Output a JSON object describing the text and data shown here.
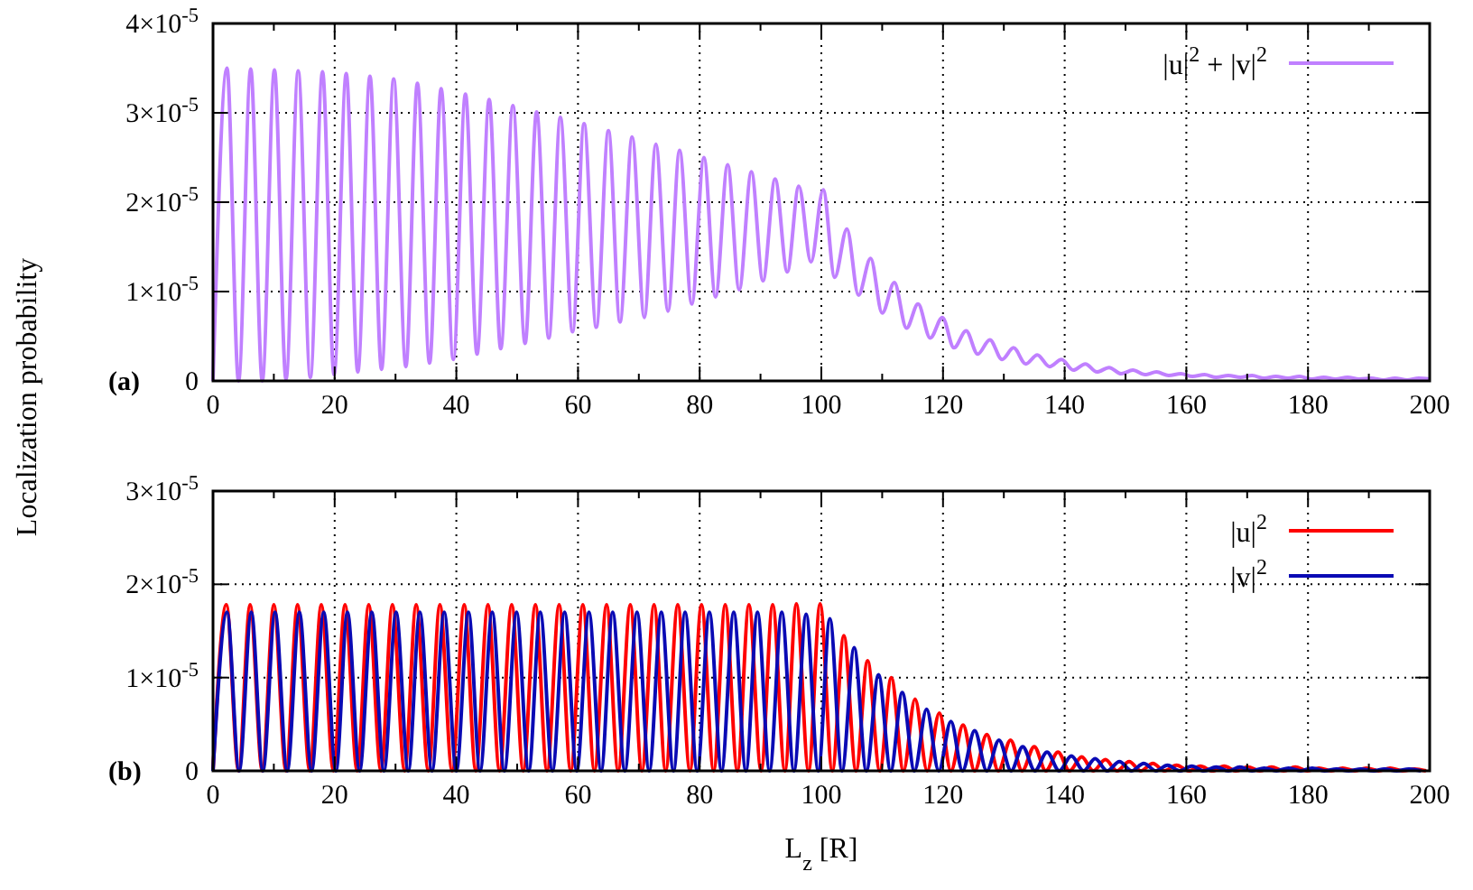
{
  "chart_data": [
    {
      "type": "line",
      "ylabel": "Localization probability",
      "annotations": [
        "(a)"
      ],
      "xlim": [
        0,
        200
      ],
      "ylim": [
        0,
        4e-05
      ],
      "xticks": [
        0,
        {
          "value": 10,
          "label": null
        },
        20,
        {
          "value": 30,
          "label": null
        },
        40,
        {
          "value": 50,
          "label": null
        },
        60,
        {
          "value": 70,
          "label": null
        },
        80,
        {
          "value": 90,
          "label": null
        },
        100,
        {
          "value": 110,
          "label": null
        },
        120,
        {
          "value": 130,
          "label": null
        },
        140,
        {
          "value": 150,
          "label": null
        },
        160,
        {
          "value": 170,
          "label": null
        },
        180,
        {
          "value": 190,
          "label": null
        },
        200
      ],
      "yticks": [
        0,
        {
          "value": 1e-05,
          "label": "1×10$^{-5}$"
        },
        {
          "value": 2e-05,
          "label": "2×10$^{-5}$"
        },
        {
          "value": 3e-05,
          "label": "3×10$^{-5}$"
        },
        {
          "value": 4e-05,
          "label": "4×10$^{-5}$"
        }
      ],
      "grid": true,
      "legend": "top right",
      "line_style": "solid",
      "marker": "none",
      "series": [
        {
          "name": "|u|$^{2}$ + |v|$^{2}$",
          "color": "#c080ff",
          "x": [
            0,
            2.3,
            4.2,
            6.2,
            8.1,
            10.1,
            12.0,
            14.0,
            16.0,
            18.0,
            19.9,
            21.9,
            23.8,
            25.8,
            27.7,
            29.7,
            31.7,
            33.6,
            35.6,
            37.5,
            39.5,
            41.5,
            43.4,
            45.4,
            47.3,
            49.3,
            51.3,
            53.2,
            55.2,
            57.1,
            59.1,
            61.0,
            63.0,
            65.0,
            66.9,
            68.9,
            70.9,
            72.8,
            74.8,
            76.7,
            78.7,
            80.7,
            82.6,
            84.6,
            86.5,
            88.5,
            90.4,
            92.4,
            94.4,
            96.3,
            98.3,
            100.3,
            102.2,
            104.2,
            106.1,
            108.1,
            110.0,
            112.0,
            114.0,
            115.9,
            117.9,
            119.9,
            121.8,
            123.8,
            125.7,
            127.7,
            129.7,
            131.6,
            133.6,
            135.5,
            137.5,
            139.5,
            141.4,
            143.4,
            145.3,
            147.3,
            149.3,
            151.2,
            153.2,
            155.1,
            157.1,
            159.1,
            161.0,
            163.0,
            164.9,
            166.9,
            168.9,
            170.8,
            172.8,
            174.7,
            176.7,
            178.6,
            180.6,
            182.6,
            184.5,
            186.5,
            188.4,
            190.4,
            192.4,
            194.3,
            196.3,
            198.2,
            200
          ],
          "values": [
            0,
            3.5e-05,
            0,
            3.49e-05,
            0,
            3.48e-05,
            2e-07,
            3.47e-05,
            4e-07,
            3.46e-05,
            7e-07,
            3.44e-05,
            1e-06,
            3.41e-05,
            1.3e-06,
            3.38e-05,
            1.6e-06,
            3.33e-05,
            2e-06,
            3.27e-05,
            2.4e-06,
            3.21e-05,
            3e-06,
            3.15e-05,
            3.6e-06,
            3.08e-05,
            4.2e-06,
            3.01e-05,
            4.8e-06,
            2.95e-05,
            5.5e-06,
            2.88e-05,
            6e-06,
            2.8e-05,
            6.6e-06,
            2.73e-05,
            7.1e-06,
            2.65e-05,
            7.8e-06,
            2.58e-05,
            8.6e-06,
            2.5e-05,
            9.4e-06,
            2.42e-05,
            1.02e-05,
            2.34e-05,
            1.12e-05,
            2.26e-05,
            1.22e-05,
            2.18e-05,
            1.33e-05,
            2.14e-05,
            1.16e-05,
            1.7e-05,
            9.6e-06,
            1.37e-05,
            7.6e-06,
            1.1e-05,
            5.9e-06,
            8.6e-06,
            4.8e-06,
            7.1e-06,
            3.7e-06,
            5.6e-06,
            3e-06,
            4.6e-06,
            2.4e-06,
            3.7e-06,
            1.9e-06,
            2.9e-06,
            1.6e-06,
            2.4e-06,
            1.2e-06,
            1.9e-06,
            1e-06,
            1.5e-06,
            8e-07,
            1.2e-06,
            7e-07,
            1e-06,
            6e-07,
            8e-07,
            5e-07,
            7e-07,
            4e-07,
            6e-07,
            4e-07,
            6e-07,
            3e-07,
            5e-07,
            3e-07,
            5e-07,
            2e-07,
            4e-07,
            2e-07,
            4e-07,
            2e-07,
            3e-07,
            1e-07,
            3e-07,
            1e-07,
            3e-07,
            2e-07
          ]
        }
      ]
    },
    {
      "type": "line",
      "xlabel": "L$_{z}$ [R]",
      "annotations": [
        "(b)"
      ],
      "xlim": [
        0,
        200
      ],
      "ylim": [
        0,
        3e-05
      ],
      "xticks": [
        0,
        {
          "value": 10,
          "label": null
        },
        20,
        {
          "value": 30,
          "label": null
        },
        40,
        {
          "value": 50,
          "label": null
        },
        60,
        {
          "value": 70,
          "label": null
        },
        80,
        {
          "value": 90,
          "label": null
        },
        100,
        {
          "value": 110,
          "label": null
        },
        120,
        {
          "value": 130,
          "label": null
        },
        140,
        {
          "value": 150,
          "label": null
        },
        160,
        {
          "value": 170,
          "label": null
        },
        180,
        {
          "value": 190,
          "label": null
        },
        200
      ],
      "yticks": [
        0,
        {
          "value": 1e-05,
          "label": "1×10$^{-5}$"
        },
        {
          "value": 2e-05,
          "label": "2×10$^{-5}$"
        },
        {
          "value": 3e-05,
          "label": "3×10$^{-5}$"
        }
      ],
      "grid": true,
      "legend": "top right",
      "line_style": "solid",
      "marker": "none",
      "series": [
        {
          "name": "|u|$^{2}$",
          "color": "#ff0000",
          "x": [
            0,
            2.2,
            4.2,
            6.1,
            8.1,
            10.0,
            12.0,
            13.9,
            15.9,
            17.8,
            19.8,
            21.7,
            23.7,
            25.6,
            27.6,
            29.5,
            31.5,
            33.4,
            35.4,
            37.3,
            39.3,
            41.3,
            43.2,
            45.2,
            47.1,
            49.1,
            51.0,
            53.0,
            54.9,
            56.9,
            58.8,
            60.8,
            62.7,
            64.7,
            66.6,
            68.6,
            70.5,
            72.5,
            74.4,
            76.4,
            78.4,
            80.3,
            82.3,
            84.2,
            86.2,
            88.1,
            90.1,
            92.0,
            94.0,
            95.9,
            97.9,
            99.8,
            101.8,
            103.7,
            105.7,
            107.6,
            109.6,
            111.5,
            113.5,
            115.4,
            117.4,
            119.4,
            121.3,
            123.3,
            125.2,
            127.2,
            129.1,
            131.1,
            133.0,
            135.0,
            136.9,
            138.9,
            140.8,
            142.8,
            144.7,
            146.7,
            148.6,
            150.6,
            152.5,
            154.5,
            156.4,
            158.4,
            160.4,
            162.3,
            164.3,
            166.2,
            168.2,
            170.1,
            172.1,
            174.0,
            176.0,
            177.9,
            179.9,
            181.8,
            183.8,
            185.7,
            187.7,
            189.6,
            191.6,
            193.5,
            195.5,
            197.5,
            199.4
          ],
          "values": [
            0,
            1.78e-05,
            0,
            1.78e-05,
            0,
            1.78e-05,
            0,
            1.78e-05,
            0,
            1.78e-05,
            0,
            1.78e-05,
            0,
            1.78e-05,
            0,
            1.78e-05,
            0,
            1.78e-05,
            0,
            1.78e-05,
            0,
            1.78e-05,
            0,
            1.78e-05,
            0,
            1.78e-05,
            0,
            1.78e-05,
            0,
            1.78e-05,
            0,
            1.78e-05,
            0,
            1.78e-05,
            0,
            1.78e-05,
            0,
            1.78e-05,
            0,
            1.78e-05,
            0,
            1.78e-05,
            0,
            1.78e-05,
            0,
            1.78e-05,
            0,
            1.78e-05,
            0,
            1.79e-05,
            0,
            1.79e-05,
            0,
            1.45e-05,
            0,
            1.18e-05,
            0,
            1e-05,
            0,
            7.7e-06,
            0,
            6.2e-06,
            0,
            4.9e-06,
            0,
            3.9e-06,
            0,
            3.3e-06,
            0,
            2.6e-06,
            0,
            2e-06,
            0,
            1.5e-06,
            0,
            1.2e-06,
            0,
            1e-06,
            0,
            8e-07,
            0,
            6e-07,
            0,
            5e-07,
            0,
            5e-07,
            0,
            4e-07,
            0,
            4e-07,
            0,
            4e-07,
            0,
            3e-07,
            0,
            3e-07,
            0,
            3e-07,
            0,
            3e-07,
            0,
            2e-07,
            0
          ]
        },
        {
          "name": "|v|$^{2}$",
          "color": "#0a0ab4",
          "x": [
            0,
            2.3,
            4.3,
            6.3,
            8.2,
            10.2,
            12.2,
            14.2,
            16.2,
            18.2,
            20.2,
            22.1,
            24.1,
            26.1,
            28.1,
            30.1,
            32.1,
            34.0,
            36.0,
            38.0,
            40.0,
            42.0,
            43.9,
            45.9,
            47.9,
            49.9,
            51.9,
            53.8,
            55.8,
            57.8,
            59.8,
            61.8,
            63.8,
            65.7,
            67.7,
            69.7,
            71.7,
            73.7,
            75.7,
            77.6,
            79.6,
            81.6,
            83.6,
            85.6,
            87.6,
            89.5,
            91.5,
            93.5,
            95.5,
            97.5,
            99.5,
            101.4,
            103.4,
            105.4,
            107.4,
            109.4,
            111.4,
            113.3,
            115.3,
            117.3,
            119.3,
            121.3,
            123.2,
            125.2,
            127.2,
            129.2,
            131.2,
            133.1,
            135.1,
            137.1,
            139.1,
            141.1,
            143.1,
            145.0,
            147.0,
            149.0,
            151.0,
            153.0,
            155.0,
            156.9,
            158.9,
            160.9,
            162.9,
            164.9,
            166.9,
            168.8,
            170.8,
            172.8,
            174.8,
            176.8,
            178.8,
            180.7,
            182.7,
            184.7,
            186.7,
            188.7,
            190.7,
            192.6,
            194.6,
            196.6,
            198.6
          ],
          "values": [
            0,
            1.7e-05,
            0,
            1.7e-05,
            0,
            1.7e-05,
            0,
            1.7e-05,
            0,
            1.7e-05,
            0,
            1.7e-05,
            0,
            1.7e-05,
            0,
            1.7e-05,
            0,
            1.7e-05,
            0,
            1.7e-05,
            0,
            1.7e-05,
            0,
            1.7e-05,
            0,
            1.7e-05,
            0,
            1.7e-05,
            0,
            1.7e-05,
            0,
            1.7e-05,
            0,
            1.7e-05,
            0,
            1.7e-05,
            0,
            1.7e-05,
            0,
            1.7e-05,
            0,
            1.7e-05,
            0,
            1.7e-05,
            0,
            1.7e-05,
            0,
            1.7e-05,
            0,
            1.68e-05,
            0,
            1.63e-05,
            0,
            1.32e-05,
            0,
            1.03e-05,
            0,
            8.4e-06,
            0,
            6.6e-06,
            0,
            5.3e-06,
            0,
            4.3e-06,
            0,
            3.3e-06,
            0,
            2.6e-06,
            0,
            2e-06,
            0,
            1.6e-06,
            0,
            1.3e-06,
            0,
            1e-06,
            0,
            8e-07,
            0,
            6e-07,
            0,
            5e-07,
            0,
            4e-07,
            0,
            4e-07,
            0,
            3e-07,
            0,
            3e-07,
            0,
            3e-07,
            0,
            2e-07,
            0,
            2e-07,
            0,
            2e-07,
            0,
            2e-07,
            0
          ]
        }
      ]
    }
  ]
}
